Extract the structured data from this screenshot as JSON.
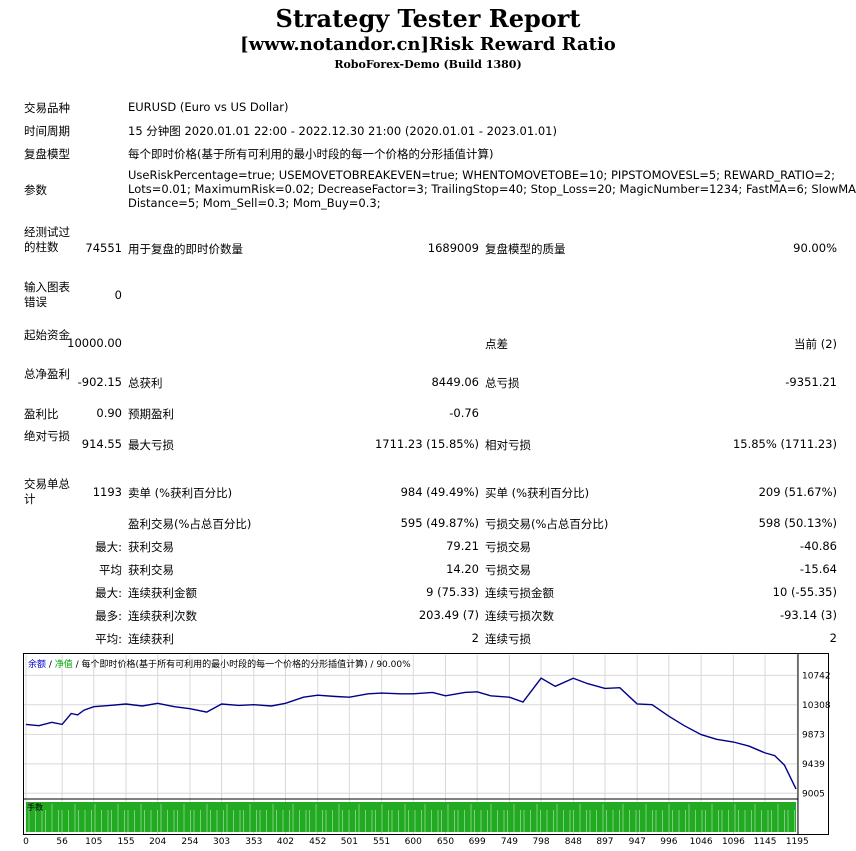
{
  "header": {
    "title": "Strategy Tester Report",
    "subtitle": "[www.notandor.cn]Risk Reward Ratio",
    "server": "RoboForex-Demo (Build 1380)"
  },
  "info": {
    "symbol_label": "交易品种",
    "symbol_value": "EURUSD (Euro vs US Dollar)",
    "period_label": "时间周期",
    "period_value": "15 分钟图 2020.01.01 22:00 - 2022.12.30 21:00 (2020.01.01 - 2023.01.01)",
    "model_label": "复盘模型",
    "model_value": "每个即时价格(基于所有可利用的最小时段的每一个价格的分形插值计算)",
    "params_label": "参数",
    "params_line1": "UseRiskPercentage=true; USEMOVETOBREAKEVEN=true; WHENTOMOVETOBE=10; PIPSTOMOVESL=5; REWARD_RATIO=2;",
    "params_line2": "Lots=0.01; MaximumRisk=0.02; DecreaseFactor=3; TrailingStop=40; Stop_Loss=20; MagicNumber=1234; FastMA=6; SlowMA=85;",
    "params_line3": "Distance=5; Mom_Sell=0.3; Mom_Buy=0.3;"
  },
  "stats": {
    "bars_label": "经测试过的柱数",
    "bars_value": "74551",
    "ticks_label": "用于复盘的即时价数量",
    "ticks_value": "1689009",
    "quality_label": "复盘模型的质量",
    "quality_value": "90.00%",
    "errors_label": "输入图表错误",
    "errors_value": "0",
    "deposit_label": "起始资金",
    "deposit_value": "10000.00",
    "spread_label": "点差",
    "spread_value": "当前 (2)",
    "netprofit_label": "总净盈利",
    "netprofit_value": "-902.15",
    "grossprofit_label": "总获利",
    "grossprofit_value": "8449.06",
    "grossloss_label": "总亏损",
    "grossloss_value": "-9351.21",
    "pf_label": "盈利比",
    "pf_value": "0.90",
    "payoff_label": "预期盈利",
    "payoff_value": "-0.76",
    "absdd_label": "绝对亏损",
    "absdd_value": "914.55",
    "maxdd_label": "最大亏损",
    "maxdd_value": "1711.23 (15.85%)",
    "reldd_label": "相对亏损",
    "reldd_value": "15.85% (1711.23)",
    "trades_label": "交易单总计",
    "trades_value": "1193",
    "short_label": "卖单 (%获利百分比)",
    "short_value": "984 (49.49%)",
    "long_label": "买单 (%获利百分比)",
    "long_value": "209 (51.67%)",
    "profit_trades_label": "盈利交易(%占总百分比)",
    "profit_trades_value": "595 (49.87%)",
    "loss_trades_label": "亏损交易(%占总百分比)",
    "loss_trades_value": "598 (50.13%)",
    "max_prefix": "最大:",
    "avg_prefix": "平均",
    "max2_prefix": "最大:",
    "most_prefix": "最多:",
    "avg2_prefix": "平均:",
    "largest_profit_label": "获利交易",
    "largest_profit_value": "79.21",
    "largest_loss_label": "亏损交易",
    "largest_loss_value": "-40.86",
    "avg_profit_label": "获利交易",
    "avg_profit_value": "14.20",
    "avg_loss_label": "亏损交易",
    "avg_loss_value": "-15.64",
    "max_cons_wins_label": "连续获利金额",
    "max_cons_wins_value": "9 (75.33)",
    "max_cons_losses_label": "连续亏损金额",
    "max_cons_losses_value": "10 (-55.35)",
    "max_cons_profit_label": "连续获利次数",
    "max_cons_profit_value": "203.49 (7)",
    "max_cons_loss_label": "连续亏损次数",
    "max_cons_loss_value": "-93.14 (3)",
    "avg_cons_wins_label": "连续获利",
    "avg_cons_wins_value": "2",
    "avg_cons_losses_label": "连续亏损",
    "avg_cons_losses_value": "2"
  },
  "chart_data": {
    "type": "line",
    "legend_balance": "余额",
    "legend_sep1": " / ",
    "legend_equity": "净值",
    "legend_rest": " / 每个即时价格(基于所有可利用的最小时段的每一个价格的分形插值计算) / 90.00%",
    "volume_label": "手数",
    "y_ticks": [
      "10742",
      "10308",
      "9873",
      "9439",
      "9005"
    ],
    "y_tick_values": [
      10742,
      10308,
      9873,
      9439,
      9005
    ],
    "x_ticks": [
      "0",
      "56",
      "105",
      "155",
      "204",
      "254",
      "303",
      "353",
      "402",
      "452",
      "501",
      "551",
      "600",
      "650",
      "699",
      "749",
      "798",
      "848",
      "897",
      "947",
      "996",
      "1046",
      "1096",
      "1145",
      "1195"
    ],
    "x_tick_values": [
      0,
      56,
      105,
      155,
      204,
      254,
      303,
      353,
      402,
      452,
      501,
      551,
      600,
      650,
      699,
      749,
      798,
      848,
      897,
      947,
      996,
      1046,
      1096,
      1145,
      1195
    ],
    "ylim": [
      8980,
      10850
    ],
    "xlim": [
      0,
      1193
    ],
    "colors": {
      "balance": "#00008b",
      "volume": "#00aa00"
    },
    "balance_x": [
      0,
      20,
      40,
      56,
      70,
      80,
      90,
      105,
      130,
      155,
      180,
      204,
      230,
      254,
      280,
      303,
      330,
      353,
      380,
      402,
      430,
      452,
      480,
      501,
      530,
      551,
      580,
      600,
      630,
      650,
      680,
      699,
      720,
      749,
      770,
      798,
      820,
      848,
      870,
      897,
      920,
      947,
      970,
      996,
      1020,
      1046,
      1070,
      1096,
      1120,
      1145,
      1160,
      1175,
      1193
    ],
    "balance_y": [
      10020,
      10000,
      10050,
      10020,
      10180,
      10160,
      10230,
      10280,
      10300,
      10320,
      10290,
      10330,
      10280,
      10250,
      10200,
      10320,
      10300,
      10310,
      10290,
      10330,
      10420,
      10450,
      10430,
      10420,
      10470,
      10480,
      10470,
      10470,
      10490,
      10440,
      10490,
      10500,
      10440,
      10420,
      10350,
      10700,
      10580,
      10700,
      10620,
      10550,
      10560,
      10320,
      10310,
      10140,
      10000,
      9870,
      9800,
      9760,
      9700,
      9600,
      9560,
      9420,
      9070
    ]
  }
}
